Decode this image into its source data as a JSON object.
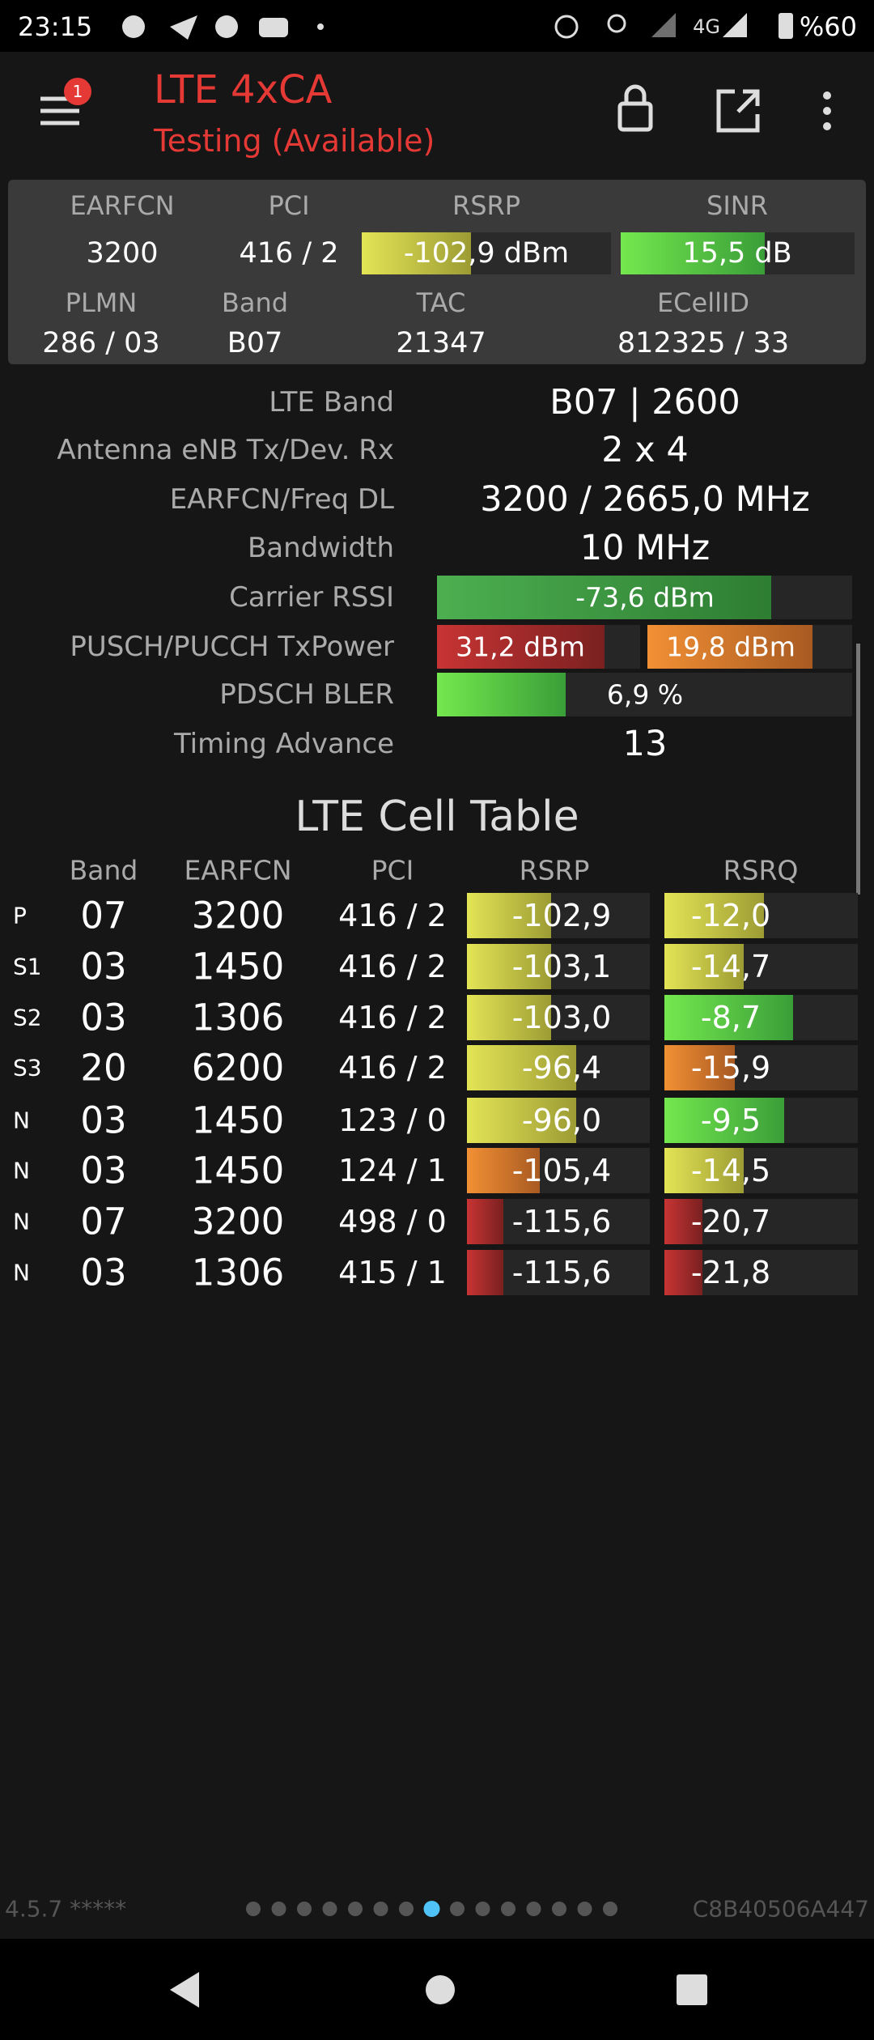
{
  "status_bar": {
    "time": "23:15",
    "network": "4G",
    "battery": "%60"
  },
  "app_bar": {
    "title": "LTE 4xCA",
    "subtitle": "Testing (Available)",
    "badge": "1"
  },
  "summary": {
    "rows": [
      [
        "EARFCN",
        "PCI",
        "RSRP",
        "SINR"
      ],
      [
        "3200",
        "416 / 2",
        "-102,9 dBm",
        "15,5 dB"
      ],
      [
        "PLMN",
        "Band",
        "TAC",
        "ECellID"
      ],
      [
        "286 / 03",
        "B07",
        "21347",
        "812325 / 33"
      ]
    ]
  },
  "details": [
    {
      "label": "LTE Band",
      "values": [
        "B07 | 2600"
      ]
    },
    {
      "label": "Antenna eNB Tx/Dev. Rx",
      "values": [
        "2 x 4"
      ]
    },
    {
      "label": "EARFCN/Freq DL",
      "values": [
        "3200 / 2665,0 MHz"
      ]
    },
    {
      "label": "Bandwidth",
      "values": [
        "10 MHz"
      ]
    },
    {
      "label": "Carrier RSSI",
      "values": [
        "-73,6 dBm"
      ]
    },
    {
      "label": "PUSCH/PUCCH TxPower",
      "values": [
        "31,2 dBm",
        "19,8 dBm"
      ]
    },
    {
      "label": "PDSCH BLER",
      "values": [
        "6,9 %"
      ]
    },
    {
      "label": "Timing Advance",
      "values": [
        "13"
      ]
    }
  ],
  "cell_table": {
    "title": "LTE Cell Table",
    "columns": [
      "Band",
      "EARFCN",
      "PCI",
      "RSRP",
      "RSRQ"
    ],
    "rows": [
      [
        "P",
        "07",
        "3200",
        "416 / 2",
        "-102,9",
        "-12,0"
      ],
      [
        "S1",
        "03",
        "1450",
        "416 / 2",
        "-103,1",
        "-14,7"
      ],
      [
        "S2",
        "03",
        "1306",
        "416 / 2",
        "-103,0",
        "-8,7"
      ],
      [
        "S3",
        "20",
        "6200",
        "416 / 2",
        "-96,4",
        "-15,9"
      ],
      [
        "N",
        "03",
        "1450",
        "123 / 0",
        "-96,0",
        "-9,5"
      ],
      [
        "N",
        "03",
        "1450",
        "124 / 1",
        "-105,4",
        "-14,5"
      ],
      [
        "N",
        "07",
        "3200",
        "498 / 0",
        "-115,6",
        "-20,7"
      ],
      [
        "N",
        "03",
        "1306",
        "415 / 1",
        "-115,6",
        "-21,8"
      ]
    ]
  },
  "footer": {
    "version": "4.5.7 *****",
    "device_id": "C8B40506A447"
  }
}
